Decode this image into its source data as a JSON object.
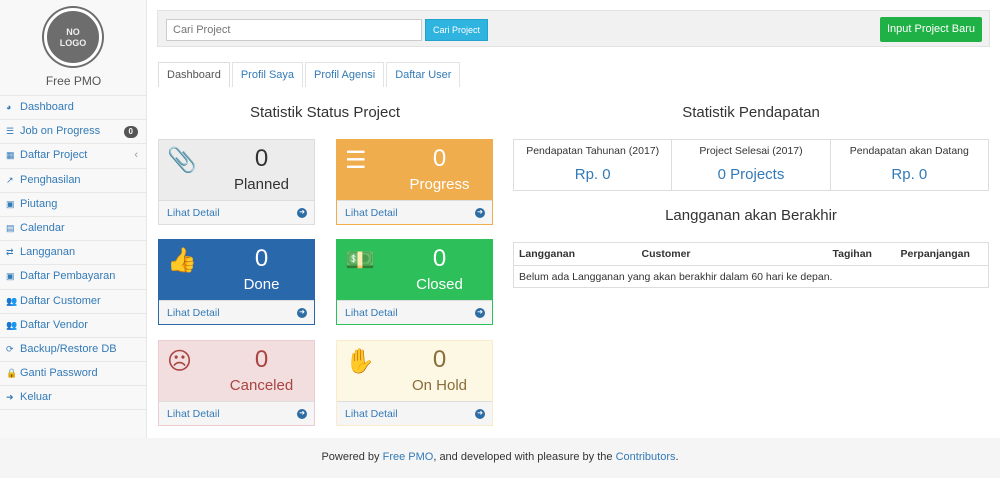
{
  "sidebar": {
    "logo_text": "NO LOGO",
    "brand": "Free PMO",
    "items": [
      {
        "label": "Dashboard",
        "icon": "dashboard-icon",
        "glyph": "◕"
      },
      {
        "label": "Job on Progress",
        "icon": "tasks-icon",
        "glyph": "☰",
        "badge": "0"
      },
      {
        "label": "Daftar Project",
        "icon": "table-icon",
        "glyph": "▦",
        "chevron": "‹"
      },
      {
        "label": "Penghasilan",
        "icon": "line-chart-icon",
        "glyph": "↗"
      },
      {
        "label": "Piutang",
        "icon": "money-icon",
        "glyph": "▣"
      },
      {
        "label": "Calendar",
        "icon": "calendar-icon",
        "glyph": "▤"
      },
      {
        "label": "Langganan",
        "icon": "retweet-icon",
        "glyph": "⇄"
      },
      {
        "label": "Daftar Pembayaran",
        "icon": "money-icon",
        "glyph": "▣"
      },
      {
        "label": "Daftar Customer",
        "icon": "users-icon",
        "glyph": "👥"
      },
      {
        "label": "Daftar Vendor",
        "icon": "users-icon",
        "glyph": "👥"
      },
      {
        "label": "Backup/Restore DB",
        "icon": "refresh-icon",
        "glyph": "⟳"
      },
      {
        "label": "Ganti Password",
        "icon": "lock-icon",
        "glyph": "🔒"
      },
      {
        "label": "Keluar",
        "icon": "sign-out-icon",
        "glyph": "➜"
      }
    ]
  },
  "topbar": {
    "search_placeholder": "Cari Project",
    "search_button": "Cari Project",
    "new_button": "Input Project Baru"
  },
  "tabs": [
    {
      "label": "Dashboard",
      "active": true
    },
    {
      "label": "Profil Saya"
    },
    {
      "label": "Profil Agensi"
    },
    {
      "label": "Daftar User"
    }
  ],
  "status": {
    "title": "Statistik Status Project",
    "cards": [
      {
        "label": "Planned",
        "value": "0",
        "link": "Lihat Detail",
        "icon": "paperclip-icon",
        "glyph": "📎",
        "bg": "#ececec",
        "fg": "#333",
        "border": "#ddd"
      },
      {
        "label": "Progress",
        "value": "0",
        "link": "Lihat Detail",
        "icon": "server-icon",
        "glyph": "☰",
        "bg": "#f0ad4e",
        "fg": "#fff",
        "border": "#f0ad4e"
      },
      {
        "label": "Done",
        "value": "0",
        "link": "Lihat Detail",
        "icon": "thumbs-up-icon",
        "glyph": "👍",
        "bg": "#2a68ac",
        "fg": "#fff",
        "border": "#2a68ac"
      },
      {
        "label": "Closed",
        "value": "0",
        "link": "Lihat Detail",
        "icon": "money-icon",
        "glyph": "💵",
        "bg": "#2dc05a",
        "fg": "#fff",
        "border": "#2dc05a"
      },
      {
        "label": "Canceled",
        "value": "0",
        "link": "Lihat Detail",
        "icon": "frown-icon",
        "glyph": "☹",
        "bg": "#f2dede",
        "fg": "#a94442",
        "border": "#ebccd1"
      },
      {
        "label": "On Hold",
        "value": "0",
        "link": "Lihat Detail",
        "icon": "hand-stop-icon",
        "glyph": "✋",
        "bg": "#fcf8e3",
        "fg": "#8a6d3b",
        "border": "#faebcc"
      }
    ]
  },
  "revenue": {
    "title": "Statistik Pendapatan",
    "cells": [
      {
        "label": "Pendapatan Tahunan (2017)",
        "value": "Rp. 0"
      },
      {
        "label": "Project Selesai (2017)",
        "value": "0 Projects"
      },
      {
        "label": "Pendapatan akan Datang",
        "value": "Rp. 0"
      }
    ]
  },
  "subscriptions": {
    "title": "Langganan akan Berakhir",
    "columns": [
      "Langganan",
      "Customer",
      "Tagihan",
      "Perpanjangan"
    ],
    "empty": "Belum ada Langganan yang akan berakhir dalam 60 hari ke depan."
  },
  "footer": {
    "p1": "Powered by ",
    "link1": "Free PMO",
    "p2": ", and developed with pleasure by the ",
    "link2": "Contributors",
    "p3": "."
  }
}
